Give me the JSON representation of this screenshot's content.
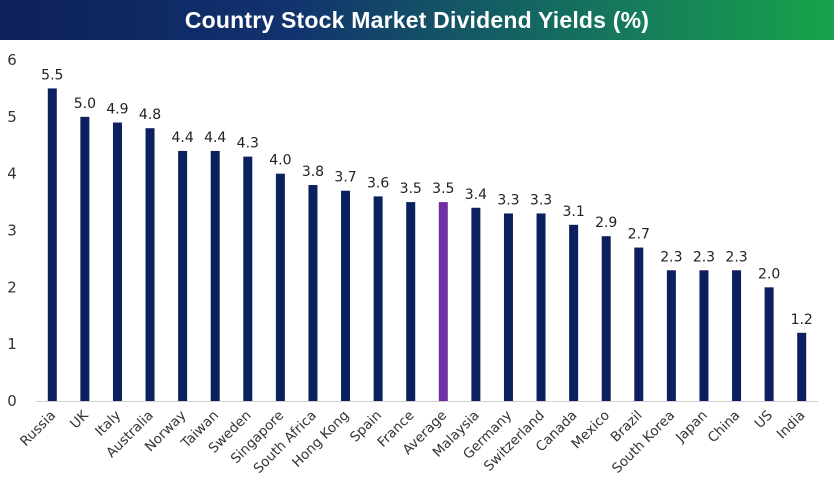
{
  "chart_data": {
    "type": "bar",
    "title": "Country Stock Market Dividend Yields (%)",
    "categories": [
      "Russia",
      "UK",
      "Italy",
      "Australia",
      "Norway",
      "Taiwan",
      "Sweden",
      "Singapore",
      "South Africa",
      "Hong Kong",
      "Spain",
      "France",
      "Average",
      "Malaysia",
      "Germany",
      "Switzerland",
      "Canada",
      "Mexico",
      "Brazil",
      "South Korea",
      "Japan",
      "China",
      "US",
      "India"
    ],
    "values": [
      5.5,
      5.0,
      4.9,
      4.8,
      4.4,
      4.4,
      4.3,
      4.0,
      3.8,
      3.7,
      3.6,
      3.5,
      3.5,
      3.4,
      3.3,
      3.3,
      3.1,
      2.9,
      2.7,
      2.3,
      2.3,
      2.3,
      2.0,
      1.2
    ],
    "data_labels": [
      "5.5",
      "5.0",
      "4.9",
      "4.8",
      "4.4",
      "4.4",
      "4.3",
      "4.0",
      "3.8",
      "3.7",
      "3.6",
      "3.5",
      "3.5",
      "3.4",
      "3.3",
      "3.3",
      "3.1",
      "2.9",
      "2.7",
      "2.3",
      "2.3",
      "2.3",
      "2.0",
      "1.2"
    ],
    "ylim": [
      0,
      6
    ],
    "yticks": [
      "0",
      "1",
      "2",
      "3",
      "4",
      "5",
      "6"
    ],
    "xlabel": "",
    "ylabel": "",
    "grid": false,
    "legend": "none",
    "colors": {
      "bar": "#0c1f5e",
      "highlight": "#7030a0",
      "title_bg_start": "#0d1f5c",
      "title_bg_end": "#17a34a"
    },
    "highlight_category": "Average"
  }
}
